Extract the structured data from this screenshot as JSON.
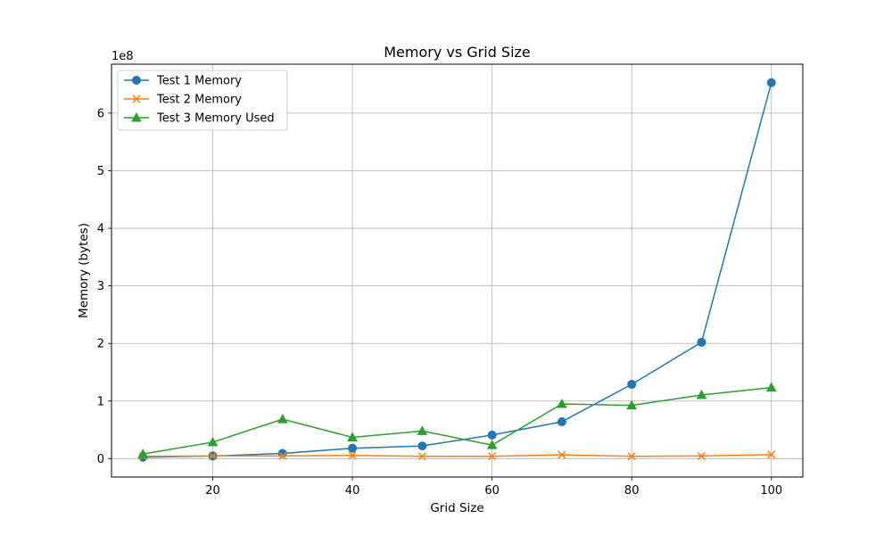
{
  "chart_data": {
    "type": "line",
    "title": "Memory vs Grid Size",
    "xlabel": "Grid Size",
    "ylabel": "Memory (bytes)",
    "y_offset_label": "1e8",
    "x": [
      10,
      20,
      30,
      40,
      50,
      60,
      70,
      80,
      90,
      100
    ],
    "xlim": [
      5.5,
      104.5
    ],
    "ylim": [
      -32000000,
      685000000
    ],
    "x_ticks": [
      20,
      40,
      60,
      80,
      100
    ],
    "x_tick_labels": [
      "20",
      "40",
      "60",
      "80",
      "100"
    ],
    "y_ticks": [
      0,
      100000000,
      200000000,
      300000000,
      400000000,
      500000000,
      600000000
    ],
    "y_tick_labels": [
      "0",
      "1",
      "2",
      "3",
      "4",
      "5",
      "6"
    ],
    "grid": true,
    "legend_position": "upper-left",
    "series": [
      {
        "name": "Test 1 Memory",
        "color": "#1f77b4",
        "marker": "circle",
        "values": [
          2500000,
          4500000,
          9000000,
          18000000,
          22000000,
          41000000,
          64000000,
          129000000,
          202000000,
          653000000
        ]
      },
      {
        "name": "Test 2 Memory",
        "color": "#ff7f0e",
        "marker": "x",
        "values": [
          4000000,
          4500000,
          4500000,
          5500000,
          4000000,
          4000000,
          6500000,
          4000000,
          4500000,
          7000000
        ]
      },
      {
        "name": "Test 3 Memory Used",
        "color": "#2ca02c",
        "marker": "triangle",
        "values": [
          8000000,
          28500000,
          68500000,
          37000000,
          48000000,
          23500000,
          95000000,
          92500000,
          110500000,
          123500000
        ]
      }
    ]
  }
}
